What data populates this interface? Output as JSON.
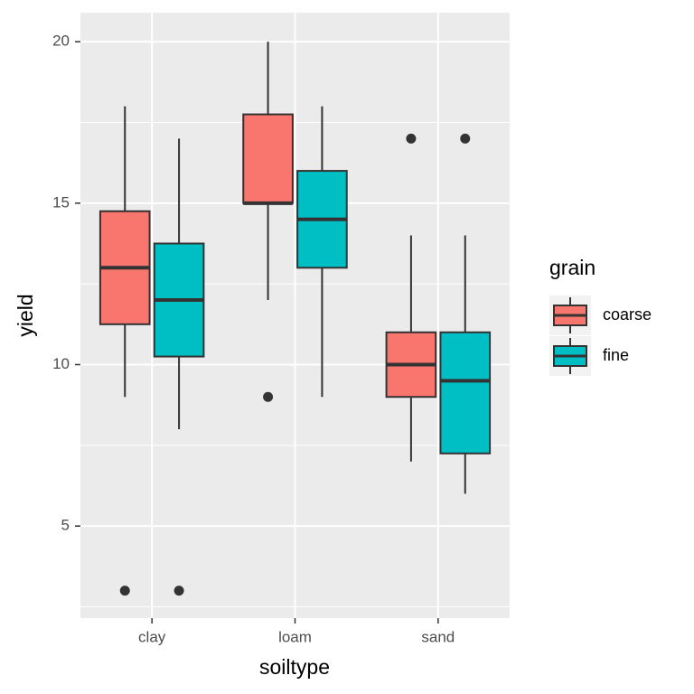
{
  "chart_data": {
    "type": "boxplot",
    "x_label": "soiltype",
    "y_label": "yield",
    "categories": [
      "clay",
      "loam",
      "sand"
    ],
    "legend_title": "grain",
    "legend_position": "right",
    "series": [
      {
        "name": "coarse",
        "color": "#F8766D",
        "boxes": [
          {
            "min": 9,
            "q1": 11.25,
            "median": 13,
            "q3": 14.75,
            "max": 18,
            "outliers": [
              3
            ]
          },
          {
            "min": 12,
            "q1": 15,
            "median": 15,
            "q3": 17.75,
            "max": 20,
            "outliers": [
              9
            ]
          },
          {
            "min": 7,
            "q1": 9,
            "median": 10,
            "q3": 11,
            "max": 14,
            "outliers": [
              17
            ]
          }
        ]
      },
      {
        "name": "fine",
        "color": "#00BFC4",
        "boxes": [
          {
            "min": 8,
            "q1": 10.25,
            "median": 12,
            "q3": 13.75,
            "max": 17,
            "outliers": [
              3
            ]
          },
          {
            "min": 9,
            "q1": 13,
            "median": 14.5,
            "q3": 16,
            "max": 18,
            "outliers": []
          },
          {
            "min": 6,
            "q1": 7.25,
            "median": 9.5,
            "q3": 11,
            "max": 14,
            "outliers": [
              17
            ]
          }
        ]
      }
    ],
    "ylim": [
      2.15,
      20.9
    ],
    "yticks": [
      5,
      10,
      15,
      20
    ],
    "minor_yticks": [
      2.5,
      7.5,
      12.5,
      17.5
    ],
    "grid": true
  }
}
